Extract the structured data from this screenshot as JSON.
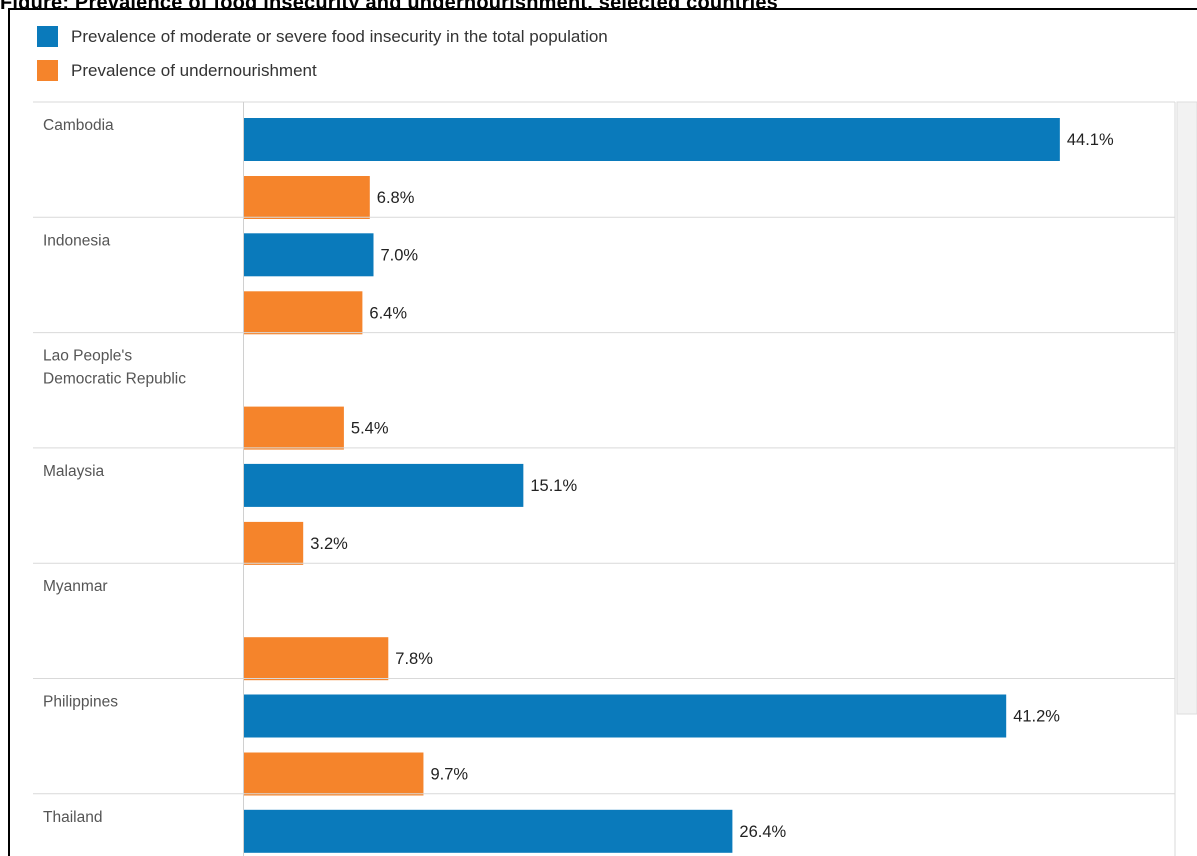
{
  "page_title": "Figure: Prevalence of food insecurity and undernourishment, selected countries",
  "chart_data": {
    "type": "bar",
    "orientation": "horizontal",
    "categories": [
      "Cambodia",
      "Indonesia",
      "Lao People's Democratic Republic",
      "Malaysia",
      "Myanmar",
      "Philippines",
      "Thailand"
    ],
    "series": [
      {
        "name": "Prevalence of moderate or severe food insecurity in the total population",
        "color": "#0a7abb",
        "values": [
          44.1,
          7.0,
          null,
          15.1,
          null,
          41.2,
          26.4
        ],
        "labels": [
          "44.1%",
          "7.0%",
          "",
          "15.1%",
          "",
          "41.2%",
          "26.4%"
        ]
      },
      {
        "name": "Prevalence of undernourishment",
        "color": "#f5842b",
        "values": [
          6.8,
          6.4,
          5.4,
          3.2,
          7.8,
          9.7,
          null
        ],
        "labels": [
          "6.8%",
          "6.4%",
          "5.4%",
          "3.2%",
          "7.8%",
          "9.7%",
          ""
        ]
      }
    ],
    "xlim": [
      0,
      50
    ],
    "legend_position": "top-left",
    "grid": false
  }
}
